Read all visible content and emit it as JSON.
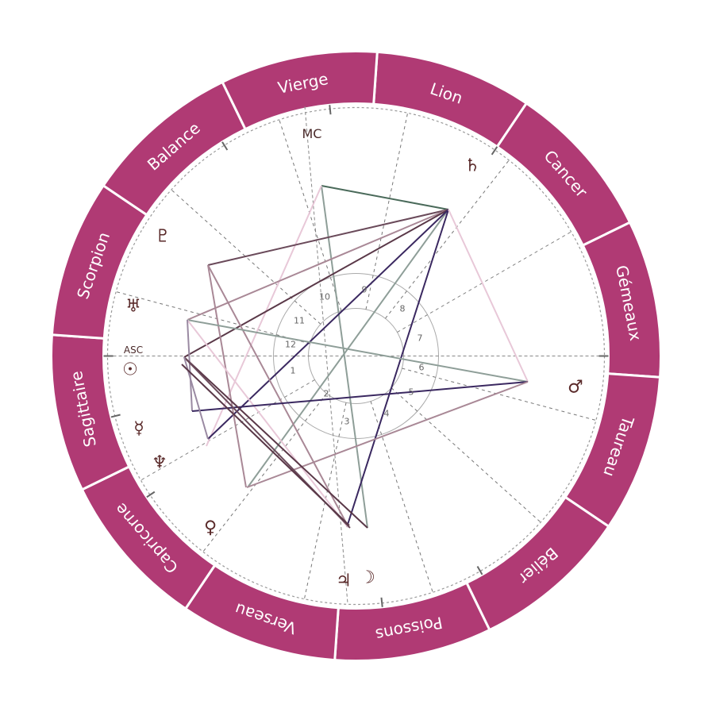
{
  "colors": {
    "ring": "#b03a74",
    "ring_text": "#ffffff",
    "axis": "#777777",
    "glyph": "#5a2a2a",
    "house_text": "#666666",
    "aspects": [
      "#4a6a5a",
      "#6a4a5a",
      "#8e9e98",
      "#e8c8d8",
      "#3a2860",
      "#a98896",
      "#5a3848",
      "#9a8aa2"
    ]
  },
  "signs": [
    {
      "name": "Lion",
      "icon": "leo"
    },
    {
      "name": "Cancer",
      "icon": "cancer"
    },
    {
      "name": "Gémeaux",
      "icon": "gemini"
    },
    {
      "name": "Taureau",
      "icon": "taurus"
    },
    {
      "name": "Bélier",
      "icon": "aries"
    },
    {
      "name": "Poissons",
      "icon": "pisces"
    },
    {
      "name": "Verseau",
      "icon": "aquarius"
    },
    {
      "name": "Capricorne",
      "icon": "capricorn"
    },
    {
      "name": "Sagittaire",
      "icon": "sagittarius"
    },
    {
      "name": "Scorpion",
      "icon": "scorpio"
    },
    {
      "name": "Balance",
      "icon": "libra"
    },
    {
      "name": "Vierge",
      "icon": "virgo"
    }
  ],
  "angles": {
    "mc": "MC",
    "asc": "ASC"
  },
  "houses": [
    "1",
    "2",
    "3",
    "4",
    "5",
    "6",
    "7",
    "8",
    "9",
    "10",
    "11",
    "12"
  ],
  "planets": [
    {
      "id": "saturn",
      "glyph": "♄",
      "icon": "saturn-icon"
    },
    {
      "id": "pluto",
      "glyph": "♇",
      "icon": "pluto-icon"
    },
    {
      "id": "uranus",
      "glyph": "♅",
      "icon": "uranus-icon"
    },
    {
      "id": "sun",
      "glyph": "☉",
      "icon": "sun-icon"
    },
    {
      "id": "mercury",
      "glyph": "☿",
      "icon": "mercury-icon"
    },
    {
      "id": "neptune",
      "glyph": "♆",
      "icon": "neptune-icon"
    },
    {
      "id": "venus",
      "glyph": "♀",
      "icon": "venus-icon"
    },
    {
      "id": "jupiter",
      "glyph": "♃",
      "icon": "jupiter-icon"
    },
    {
      "id": "moon",
      "glyph": "☽",
      "icon": "moon-icon"
    },
    {
      "id": "mars",
      "glyph": "♂",
      "icon": "mars-icon"
    }
  ]
}
